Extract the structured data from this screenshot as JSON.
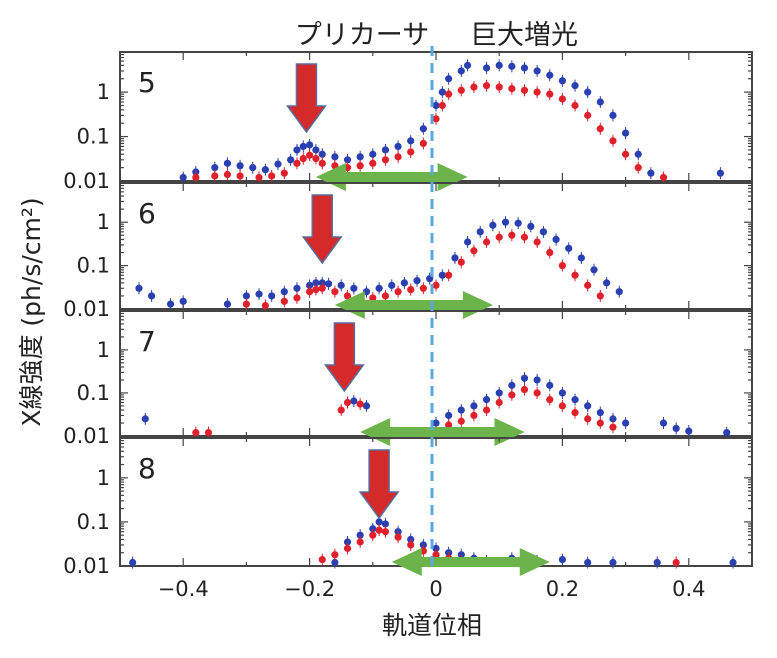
{
  "chart_data": {
    "type": "scatter",
    "annotations": {
      "precursor": "プリカーサ",
      "giant_brightening": "巨大増光"
    },
    "xlabel": "軌道位相",
    "ylabel": "X線強度 (ph/s/cm²)",
    "xlim": [
      -0.5,
      0.5
    ],
    "x_ticks": [
      -0.4,
      -0.2,
      0,
      0.2,
      0.4
    ],
    "x_tick_labels": [
      "−0.4",
      "−0.2",
      "0",
      "0.2",
      "0.4"
    ],
    "ylim": [
      0.01,
      8
    ],
    "y_scale": "log",
    "y_ticks": [
      0.01,
      0.1,
      1
    ],
    "y_tick_labels": [
      "0.01",
      "0.1",
      "1"
    ],
    "colors": {
      "blue": "#2a3fb0",
      "red": "#e0202a",
      "arrow_red": "#d42a2a",
      "arrow_green": "#6cb34c",
      "dashed_line": "#5aa8e0"
    },
    "dashed_line_x": 0,
    "panels": [
      {
        "label": "5",
        "precursor_arrow_x": -0.205,
        "green_arrow_range": [
          -0.19,
          0.05
        ],
        "series": [
          {
            "color": "blue",
            "points": [
              [
                -0.4,
                0.012
              ],
              [
                -0.38,
                0.016
              ],
              [
                -0.35,
                0.02
              ],
              [
                -0.33,
                0.025
              ],
              [
                -0.31,
                0.022
              ],
              [
                -0.29,
                0.02
              ],
              [
                -0.27,
                0.018
              ],
              [
                -0.25,
                0.024
              ],
              [
                -0.23,
                0.03
              ],
              [
                -0.22,
                0.05
              ],
              [
                -0.21,
                0.06
              ],
              [
                -0.2,
                0.065
              ],
              [
                -0.19,
                0.05
              ],
              [
                -0.18,
                0.04
              ],
              [
                -0.16,
                0.035
              ],
              [
                -0.14,
                0.03
              ],
              [
                -0.12,
                0.035
              ],
              [
                -0.1,
                0.04
              ],
              [
                -0.08,
                0.05
              ],
              [
                -0.06,
                0.06
              ],
              [
                -0.04,
                0.08
              ],
              [
                -0.02,
                0.15
              ],
              [
                0,
                0.5
              ],
              [
                0.01,
                1
              ],
              [
                0.02,
                2
              ],
              [
                0.04,
                3
              ],
              [
                0.05,
                4
              ],
              [
                0.08,
                3.5
              ],
              [
                0.1,
                4
              ],
              [
                0.12,
                3.8
              ],
              [
                0.14,
                3.5
              ],
              [
                0.16,
                3
              ],
              [
                0.18,
                2.4
              ],
              [
                0.2,
                1.8
              ],
              [
                0.22,
                1.4
              ],
              [
                0.24,
                1
              ],
              [
                0.26,
                0.6
              ],
              [
                0.28,
                0.3
              ],
              [
                0.3,
                0.12
              ],
              [
                0.32,
                0.04
              ],
              [
                0.34,
                0.015
              ],
              [
                0.45,
                0.015
              ]
            ]
          },
          {
            "color": "red",
            "points": [
              [
                -0.38,
                0.012
              ],
              [
                -0.35,
                0.013
              ],
              [
                -0.33,
                0.014
              ],
              [
                -0.31,
                0.013
              ],
              [
                -0.28,
                0.012
              ],
              [
                -0.26,
                0.013
              ],
              [
                -0.24,
                0.015
              ],
              [
                -0.22,
                0.025
              ],
              [
                -0.21,
                0.032
              ],
              [
                -0.2,
                0.038
              ],
              [
                -0.19,
                0.032
              ],
              [
                -0.18,
                0.025
              ],
              [
                -0.16,
                0.022
              ],
              [
                -0.14,
                0.02
              ],
              [
                -0.12,
                0.022
              ],
              [
                -0.1,
                0.025
              ],
              [
                -0.08,
                0.03
              ],
              [
                -0.06,
                0.035
              ],
              [
                -0.04,
                0.045
              ],
              [
                -0.02,
                0.07
              ],
              [
                0,
                0.25
              ],
              [
                0.01,
                0.5
              ],
              [
                0.02,
                0.9
              ],
              [
                0.04,
                1.1
              ],
              [
                0.06,
                1.3
              ],
              [
                0.08,
                1.4
              ],
              [
                0.1,
                1.3
              ],
              [
                0.12,
                1.2
              ],
              [
                0.14,
                1.1
              ],
              [
                0.16,
                1
              ],
              [
                0.18,
                0.9
              ],
              [
                0.2,
                0.7
              ],
              [
                0.22,
                0.5
              ],
              [
                0.24,
                0.3
              ],
              [
                0.26,
                0.15
              ],
              [
                0.28,
                0.08
              ],
              [
                0.3,
                0.04
              ],
              [
                0.32,
                0.02
              ],
              [
                0.36,
                0.012
              ]
            ]
          }
        ]
      },
      {
        "label": "6",
        "precursor_arrow_x": -0.18,
        "green_arrow_range": [
          -0.16,
          0.09
        ],
        "series": [
          {
            "color": "blue",
            "points": [
              [
                -0.47,
                0.03
              ],
              [
                -0.45,
                0.02
              ],
              [
                -0.42,
                0.013
              ],
              [
                -0.4,
                0.015
              ],
              [
                -0.33,
                0.013
              ],
              [
                -0.3,
                0.02
              ],
              [
                -0.28,
                0.022
              ],
              [
                -0.26,
                0.02
              ],
              [
                -0.24,
                0.025
              ],
              [
                -0.22,
                0.03
              ],
              [
                -0.2,
                0.035
              ],
              [
                -0.19,
                0.04
              ],
              [
                -0.18,
                0.04
              ],
              [
                -0.17,
                0.038
              ],
              [
                -0.15,
                0.035
              ],
              [
                -0.13,
                0.03
              ],
              [
                -0.11,
                0.025
              ],
              [
                -0.09,
                0.03
              ],
              [
                -0.07,
                0.035
              ],
              [
                -0.05,
                0.04
              ],
              [
                -0.03,
                0.045
              ],
              [
                -0.01,
                0.05
              ],
              [
                0.01,
                0.06
              ],
              [
                0.03,
                0.15
              ],
              [
                0.05,
                0.35
              ],
              [
                0.07,
                0.6
              ],
              [
                0.09,
                0.85
              ],
              [
                0.11,
                1
              ],
              [
                0.13,
                0.95
              ],
              [
                0.15,
                0.8
              ],
              [
                0.17,
                0.6
              ],
              [
                0.19,
                0.4
              ],
              [
                0.21,
                0.25
              ],
              [
                0.23,
                0.15
              ],
              [
                0.25,
                0.08
              ],
              [
                0.27,
                0.04
              ],
              [
                0.29,
                0.025
              ]
            ]
          },
          {
            "color": "red",
            "points": [
              [
                -0.3,
                0.013
              ],
              [
                -0.27,
                0.012
              ],
              [
                -0.24,
                0.015
              ],
              [
                -0.22,
                0.018
              ],
              [
                -0.2,
                0.025
              ],
              [
                -0.19,
                0.028
              ],
              [
                -0.18,
                0.03
              ],
              [
                -0.16,
                0.025
              ],
              [
                -0.14,
                0.02
              ],
              [
                -0.12,
                0.016
              ],
              [
                -0.1,
                0.018
              ],
              [
                -0.08,
                0.02
              ],
              [
                -0.06,
                0.025
              ],
              [
                -0.04,
                0.028
              ],
              [
                -0.02,
                0.03
              ],
              [
                0,
                0.035
              ],
              [
                0.02,
                0.06
              ],
              [
                0.04,
                0.12
              ],
              [
                0.06,
                0.22
              ],
              [
                0.08,
                0.35
              ],
              [
                0.1,
                0.45
              ],
              [
                0.12,
                0.5
              ],
              [
                0.14,
                0.45
              ],
              [
                0.16,
                0.35
              ],
              [
                0.18,
                0.2
              ],
              [
                0.2,
                0.1
              ],
              [
                0.22,
                0.06
              ],
              [
                0.24,
                0.035
              ],
              [
                0.26,
                0.02
              ]
            ]
          }
        ]
      },
      {
        "label": "7",
        "precursor_arrow_x": -0.145,
        "green_arrow_range": [
          -0.12,
          0.14
        ],
        "series": [
          {
            "color": "blue",
            "points": [
              [
                -0.46,
                0.025
              ],
              [
                -0.13,
                0.065
              ],
              [
                -0.11,
                0.05
              ],
              [
                0,
                0.02
              ],
              [
                0.02,
                0.03
              ],
              [
                0.04,
                0.04
              ],
              [
                0.06,
                0.05
              ],
              [
                0.08,
                0.07
              ],
              [
                0.1,
                0.1
              ],
              [
                0.12,
                0.15
              ],
              [
                0.14,
                0.22
              ],
              [
                0.16,
                0.2
              ],
              [
                0.18,
                0.15
              ],
              [
                0.2,
                0.1
              ],
              [
                0.22,
                0.07
              ],
              [
                0.24,
                0.05
              ],
              [
                0.26,
                0.035
              ],
              [
                0.28,
                0.025
              ],
              [
                0.3,
                0.02
              ],
              [
                0.36,
                0.02
              ],
              [
                0.38,
                0.015
              ],
              [
                0.4,
                0.013
              ],
              [
                0.46,
                0.012
              ]
            ]
          },
          {
            "color": "red",
            "points": [
              [
                -0.38,
                0.012
              ],
              [
                -0.36,
                0.012
              ],
              [
                -0.15,
                0.04
              ],
              [
                -0.14,
                0.06
              ],
              [
                -0.12,
                0.055
              ],
              [
                0.02,
                0.018
              ],
              [
                0.04,
                0.022
              ],
              [
                0.06,
                0.03
              ],
              [
                0.08,
                0.04
              ],
              [
                0.1,
                0.06
              ],
              [
                0.12,
                0.09
              ],
              [
                0.14,
                0.12
              ],
              [
                0.16,
                0.1
              ],
              [
                0.18,
                0.07
              ],
              [
                0.2,
                0.05
              ],
              [
                0.22,
                0.035
              ],
              [
                0.24,
                0.025
              ],
              [
                0.26,
                0.02
              ],
              [
                0.28,
                0.016
              ]
            ]
          }
        ]
      },
      {
        "label": "8",
        "precursor_arrow_x": -0.09,
        "green_arrow_range": [
          -0.07,
          0.18
        ],
        "series": [
          {
            "color": "blue",
            "points": [
              [
                -0.48,
                0.012
              ],
              [
                -0.16,
                0.012
              ],
              [
                -0.14,
                0.035
              ],
              [
                -0.12,
                0.05
              ],
              [
                -0.1,
                0.07
              ],
              [
                -0.09,
                0.1
              ],
              [
                -0.08,
                0.09
              ],
              [
                -0.06,
                0.06
              ],
              [
                -0.04,
                0.04
              ],
              [
                -0.02,
                0.03
              ],
              [
                0,
                0.025
              ],
              [
                0.02,
                0.02
              ],
              [
                0.04,
                0.018
              ],
              [
                0.06,
                0.015
              ],
              [
                0.08,
                0.013
              ],
              [
                0.12,
                0.015
              ],
              [
                0.16,
                0.013
              ],
              [
                0.2,
                0.014
              ],
              [
                0.24,
                0.012
              ],
              [
                0.28,
                0.012
              ],
              [
                0.35,
                0.012
              ],
              [
                0.47,
                0.012
              ]
            ]
          },
          {
            "color": "red",
            "points": [
              [
                -0.18,
                0.014
              ],
              [
                -0.16,
                0.018
              ],
              [
                -0.14,
                0.025
              ],
              [
                -0.12,
                0.035
              ],
              [
                -0.1,
                0.05
              ],
              [
                -0.09,
                0.065
              ],
              [
                -0.08,
                0.06
              ],
              [
                -0.06,
                0.045
              ],
              [
                -0.04,
                0.03
              ],
              [
                -0.02,
                0.022
              ],
              [
                0,
                0.018
              ],
              [
                0.02,
                0.015
              ],
              [
                0.04,
                0.013
              ],
              [
                0.38,
                0.012
              ]
            ]
          }
        ]
      }
    ]
  }
}
